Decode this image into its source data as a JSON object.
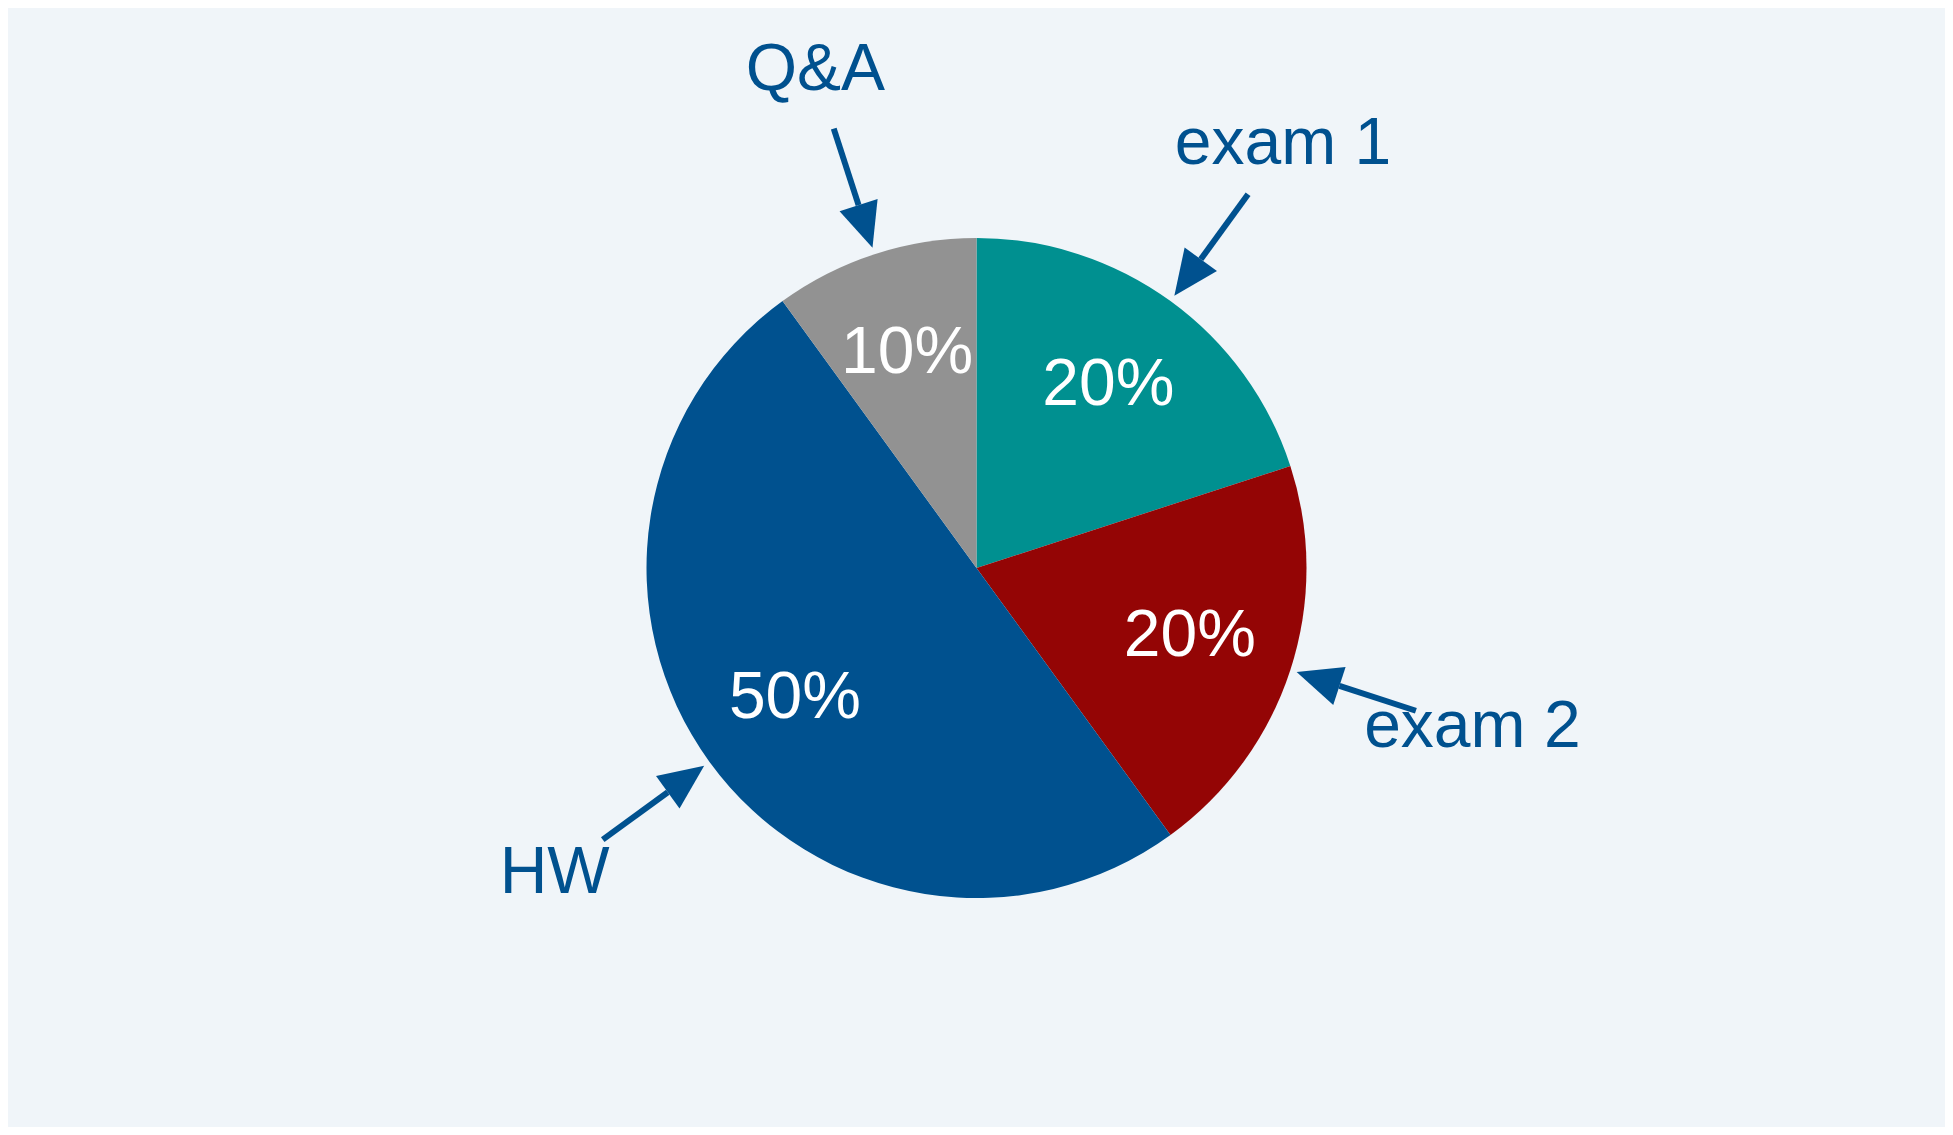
{
  "chart_data": {
    "type": "pie",
    "categories": [
      "exam 1",
      "exam 2",
      "HW",
      "Q&A"
    ],
    "values": [
      20,
      20,
      50,
      10
    ],
    "colors": [
      "#009090",
      "#940505",
      "#00518f",
      "#929292"
    ],
    "value_labels": [
      "20%",
      "20%",
      "50%",
      "10%"
    ]
  }
}
